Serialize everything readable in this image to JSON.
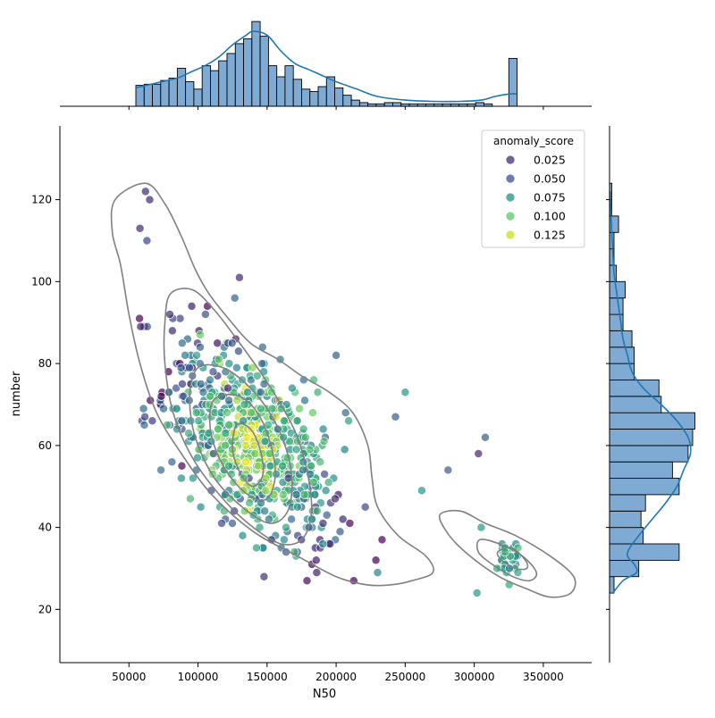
{
  "chart_data": {
    "type": "scatter",
    "title": "",
    "xlabel": "N50",
    "ylabel": "number",
    "xlim": [
      0,
      385000
    ],
    "ylim": [
      7,
      138
    ],
    "x_ticks": [
      50000,
      100000,
      150000,
      200000,
      250000,
      300000,
      350000
    ],
    "x_tick_labels": [
      "50000",
      "100000",
      "150000",
      "200000",
      "250000",
      "300000",
      "350000"
    ],
    "y_ticks": [
      20,
      40,
      60,
      80,
      100,
      120
    ],
    "y_tick_labels": [
      "20",
      "40",
      "60",
      "80",
      "100",
      "120"
    ],
    "grid": false,
    "legend": {
      "title": "anomaly_score",
      "position": "top-right",
      "entries": [
        {
          "label": "0.025",
          "value": 0.025,
          "color": "#472d7b"
        },
        {
          "label": "0.050",
          "value": 0.05,
          "color": "#3b528b"
        },
        {
          "label": "0.075",
          "value": 0.075,
          "color": "#21918c"
        },
        {
          "label": "0.100",
          "value": 0.1,
          "color": "#5ec962"
        },
        {
          "label": "0.125",
          "value": 0.125,
          "color": "#c8e020"
        }
      ]
    },
    "colormap": "viridis",
    "marker_alpha": 0.7,
    "scatter_clusters": [
      {
        "cx": 140000,
        "cy": 60,
        "sx": 32000,
        "sy": 13,
        "rho": -0.55,
        "n": 700
      },
      {
        "cx": 325000,
        "cy": 33,
        "sx": 4000,
        "sy": 2.5,
        "rho": 0,
        "n": 35
      }
    ],
    "sample_points": [
      {
        "x": 62000,
        "y": 122,
        "anomaly_score": 0.03
      },
      {
        "x": 65000,
        "y": 120,
        "anomaly_score": 0.03
      },
      {
        "x": 58000,
        "y": 113,
        "anomaly_score": 0.03
      },
      {
        "x": 63000,
        "y": 110,
        "anomaly_score": 0.04
      },
      {
        "x": 130000,
        "y": 101,
        "anomaly_score": 0.03
      },
      {
        "x": 303000,
        "y": 58,
        "anomaly_score": 0.03
      },
      {
        "x": 308000,
        "y": 62,
        "anomaly_score": 0.05
      },
      {
        "x": 281000,
        "y": 54,
        "anomaly_score": 0.05
      },
      {
        "x": 305000,
        "y": 40,
        "anomaly_score": 0.08
      },
      {
        "x": 302000,
        "y": 24,
        "anomaly_score": 0.08
      },
      {
        "x": 250000,
        "y": 73,
        "anomaly_score": 0.08
      },
      {
        "x": 243000,
        "y": 67,
        "anomaly_score": 0.05
      },
      {
        "x": 262000,
        "y": 49,
        "anomaly_score": 0.08
      },
      {
        "x": 200000,
        "y": 82,
        "anomaly_score": 0.05
      },
      {
        "x": 230000,
        "y": 29,
        "anomaly_score": 0.07
      }
    ],
    "kde_contours": [
      [
        [
          40000,
          120
        ],
        [
          62000,
          124
        ],
        [
          76000,
          119
        ],
        [
          88000,
          111
        ],
        [
          98000,
          103
        ],
        [
          108000,
          97
        ],
        [
          122000,
          91
        ],
        [
          138000,
          85
        ],
        [
          158000,
          81
        ],
        [
          175000,
          77
        ],
        [
          195000,
          73
        ],
        [
          212000,
          68
        ],
        [
          223000,
          60
        ],
        [
          226000,
          52
        ],
        [
          230000,
          45
        ],
        [
          245000,
          38
        ],
        [
          265000,
          33
        ],
        [
          270000,
          29
        ],
        [
          255000,
          27
        ],
        [
          240000,
          26
        ],
        [
          222000,
          26
        ],
        [
          200000,
          28
        ],
        [
          172000,
          33
        ],
        [
          140000,
          39
        ],
        [
          110000,
          48
        ],
        [
          88000,
          58
        ],
        [
          70000,
          68
        ],
        [
          58000,
          80
        ],
        [
          50000,
          92
        ],
        [
          44000,
          104
        ],
        [
          38000,
          112
        ]
      ],
      [
        [
          80000,
          97
        ],
        [
          96000,
          98
        ],
        [
          112000,
          93
        ],
        [
          128000,
          86
        ],
        [
          145000,
          78
        ],
        [
          160000,
          70
        ],
        [
          172000,
          62
        ],
        [
          180000,
          52
        ],
        [
          182000,
          43
        ],
        [
          175000,
          37
        ],
        [
          160000,
          36
        ],
        [
          140000,
          40
        ],
        [
          118000,
          47
        ],
        [
          96000,
          57
        ],
        [
          82000,
          68
        ],
        [
          76000,
          80
        ],
        [
          76000,
          90
        ]
      ],
      [
        [
          100000,
          79
        ],
        [
          118000,
          79
        ],
        [
          135000,
          75
        ],
        [
          150000,
          69
        ],
        [
          162000,
          61
        ],
        [
          168000,
          52
        ],
        [
          165000,
          44
        ],
        [
          152000,
          41
        ],
        [
          132000,
          45
        ],
        [
          112000,
          52
        ],
        [
          98000,
          62
        ],
        [
          94000,
          72
        ]
      ],
      [
        [
          115000,
          72
        ],
        [
          130000,
          72
        ],
        [
          143000,
          68
        ],
        [
          152000,
          61
        ],
        [
          156000,
          53
        ],
        [
          150000,
          47
        ],
        [
          136000,
          48
        ],
        [
          120000,
          54
        ],
        [
          110000,
          62
        ],
        [
          109000,
          69
        ]
      ],
      [
        [
          128000,
          65
        ],
        [
          138000,
          64
        ],
        [
          145000,
          59
        ],
        [
          147000,
          53
        ],
        [
          140000,
          50
        ],
        [
          131000,
          53
        ],
        [
          125000,
          59
        ]
      ],
      [
        [
          275000,
          43
        ],
        [
          290000,
          44
        ],
        [
          308000,
          41
        ],
        [
          330000,
          38
        ],
        [
          355000,
          33
        ],
        [
          372000,
          28
        ],
        [
          370000,
          24
        ],
        [
          355000,
          23
        ],
        [
          338000,
          25
        ],
        [
          318000,
          28
        ],
        [
          297000,
          33
        ],
        [
          282000,
          38
        ]
      ],
      [
        [
          304000,
          37
        ],
        [
          318000,
          36
        ],
        [
          335000,
          33
        ],
        [
          345000,
          29
        ],
        [
          340000,
          27
        ],
        [
          328000,
          28
        ],
        [
          313000,
          31
        ],
        [
          303000,
          34
        ]
      ],
      [
        [
          317000,
          34
        ],
        [
          327000,
          35
        ],
        [
          337000,
          32
        ],
        [
          338000,
          30
        ],
        [
          330000,
          30
        ],
        [
          320000,
          32
        ]
      ]
    ],
    "top_histogram": {
      "bin_edges": [
        55000,
        61000,
        67000,
        73000,
        79000,
        85000,
        91000,
        97000,
        103000,
        109000,
        115000,
        121000,
        127000,
        133000,
        139000,
        145000,
        151000,
        157000,
        163000,
        169000,
        175000,
        181000,
        187000,
        193000,
        199000,
        205000,
        211000,
        217000,
        223000,
        229000,
        235000,
        241000,
        247000,
        253000,
        259000,
        265000,
        271000,
        277000,
        283000,
        289000,
        295000,
        301000,
        307000,
        313000,
        319000,
        325000,
        331000
      ],
      "counts": [
        17,
        18,
        18,
        21,
        23,
        31,
        20,
        14,
        33,
        29,
        37,
        43,
        51,
        55,
        69,
        57,
        33,
        24,
        33,
        22,
        14,
        12,
        16,
        24,
        15,
        9,
        5,
        3,
        2,
        2,
        3,
        3,
        2,
        2,
        2,
        2,
        2,
        2,
        2,
        2,
        2,
        3,
        2,
        0,
        0,
        39
      ]
    },
    "right_histogram": {
      "bin_edges": [
        24,
        28,
        32,
        36,
        40,
        44,
        48,
        52,
        56,
        60,
        64,
        68,
        72,
        76,
        80,
        84,
        88,
        92,
        96,
        100,
        104,
        108,
        112,
        116,
        120,
        124
      ],
      "counts": [
        2,
        13,
        31,
        15,
        14,
        16,
        31,
        28,
        35,
        37,
        38,
        23,
        22,
        11,
        11,
        10,
        6,
        6,
        7,
        3,
        2,
        2,
        4,
        1,
        1
      ],
      "kde": [
        [
          24,
          1.5
        ],
        [
          27,
          6
        ],
        [
          29,
          12
        ],
        [
          31,
          11
        ],
        [
          33,
          8
        ],
        [
          35,
          9
        ],
        [
          38,
          13
        ],
        [
          42,
          19
        ],
        [
          46,
          25
        ],
        [
          50,
          30
        ],
        [
          54,
          33
        ],
        [
          58,
          36
        ],
        [
          62,
          35
        ],
        [
          66,
          30
        ],
        [
          70,
          23
        ],
        [
          74,
          15
        ],
        [
          78,
          10
        ],
        [
          82,
          8
        ],
        [
          86,
          6
        ],
        [
          90,
          5
        ],
        [
          94,
          4
        ],
        [
          98,
          3
        ],
        [
          102,
          2
        ],
        [
          106,
          1.6
        ],
        [
          112,
          1
        ],
        [
          118,
          0.5
        ],
        [
          122,
          0.3
        ]
      ]
    },
    "top_kde": [
      [
        55000,
        15
      ],
      [
        70000,
        19
      ],
      [
        85000,
        23
      ],
      [
        95000,
        28
      ],
      [
        105000,
        33
      ],
      [
        115000,
        40
      ],
      [
        125000,
        50
      ],
      [
        135000,
        58
      ],
      [
        140000,
        61
      ],
      [
        150000,
        58
      ],
      [
        160000,
        45
      ],
      [
        170000,
        35
      ],
      [
        180000,
        30
      ],
      [
        190000,
        25
      ],
      [
        200000,
        20
      ],
      [
        215000,
        14
      ],
      [
        230000,
        8
      ],
      [
        250000,
        5
      ],
      [
        270000,
        4
      ],
      [
        290000,
        4
      ],
      [
        305000,
        5
      ],
      [
        315000,
        8
      ],
      [
        325000,
        10
      ],
      [
        331000,
        10
      ]
    ]
  },
  "colors": {
    "hist_fill": "#7faad3",
    "hist_edge": "#000000",
    "kde_line": "#1f77b4",
    "contour": "#808080"
  }
}
